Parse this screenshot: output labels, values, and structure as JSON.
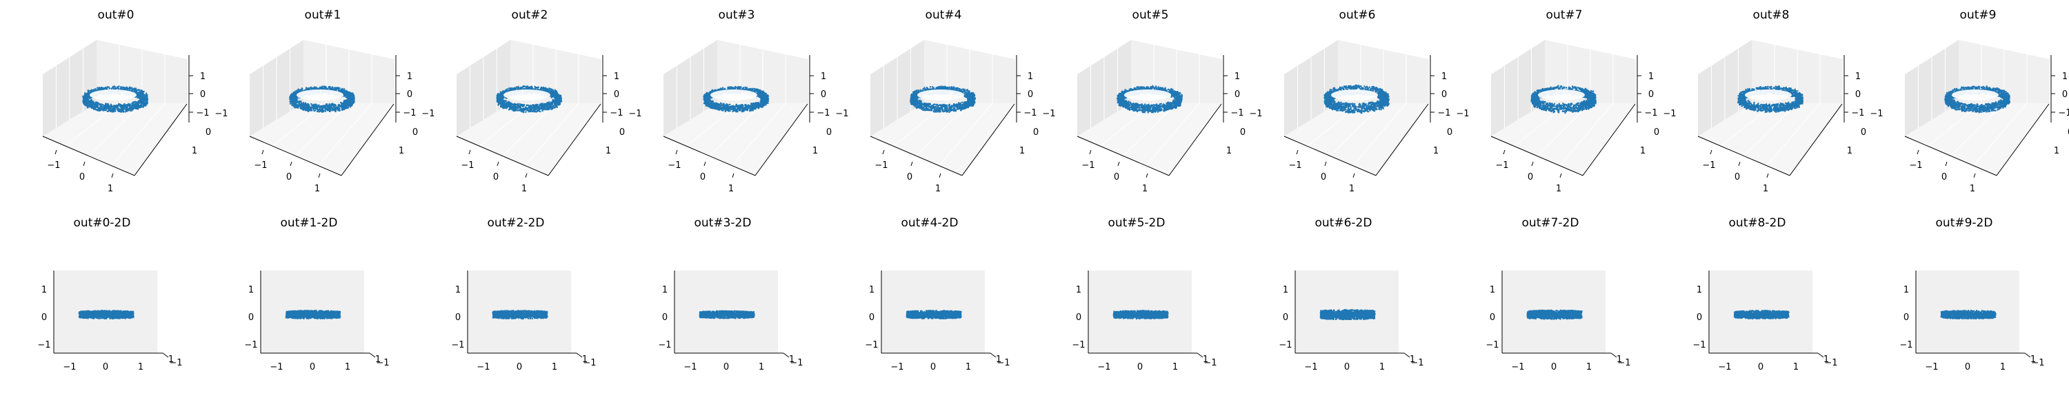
{
  "colors": {
    "points": "#1f77b4",
    "pane_left": "#e7e7e7",
    "pane_back": "#f0f0f0",
    "pane_floor": "#f6f6f6",
    "grid": "#ffffff",
    "axis": "#000000"
  },
  "point_count": 1400,
  "chart_data": [
    {
      "type": "scatter",
      "title": "out#0",
      "view": "3d",
      "xlim": [
        -1.6,
        1.6
      ],
      "ylim": [
        -1.6,
        1.6
      ],
      "zlim": [
        -1.6,
        1.6
      ],
      "x_ticks": [
        "−1",
        "0",
        "1"
      ],
      "y_ticks": [
        "−1",
        "0",
        "1"
      ],
      "z_ticks": [
        "−1",
        "0",
        "1"
      ],
      "ring": {
        "radius": 1.0,
        "height": 0.4
      }
    },
    {
      "type": "scatter",
      "title": "out#1",
      "view": "3d",
      "xlim": [
        -1.6,
        1.6
      ],
      "ylim": [
        -1.6,
        1.6
      ],
      "zlim": [
        -1.6,
        1.6
      ],
      "x_ticks": [
        "−1",
        "0",
        "1"
      ],
      "y_ticks": [
        "−1",
        "0",
        "1"
      ],
      "z_ticks": [
        "−1",
        "0",
        "1"
      ],
      "ring": {
        "radius": 1.0,
        "height": 0.4
      }
    },
    {
      "type": "scatter",
      "title": "out#2",
      "view": "3d",
      "xlim": [
        -1.6,
        1.6
      ],
      "ylim": [
        -1.6,
        1.6
      ],
      "zlim": [
        -1.6,
        1.6
      ],
      "x_ticks": [
        "−1",
        "0",
        "1"
      ],
      "y_ticks": [
        "−1",
        "0",
        "1"
      ],
      "z_ticks": [
        "−1",
        "0",
        "1"
      ],
      "ring": {
        "radius": 1.0,
        "height": 0.4
      }
    },
    {
      "type": "scatter",
      "title": "out#3",
      "view": "3d",
      "xlim": [
        -1.6,
        1.6
      ],
      "ylim": [
        -1.6,
        1.6
      ],
      "zlim": [
        -1.6,
        1.6
      ],
      "x_ticks": [
        "−1",
        "0",
        "1"
      ],
      "y_ticks": [
        "−1",
        "0",
        "1"
      ],
      "z_ticks": [
        "−1",
        "0",
        "1"
      ],
      "ring": {
        "radius": 1.0,
        "height": 0.35
      }
    },
    {
      "type": "scatter",
      "title": "out#4",
      "view": "3d",
      "xlim": [
        -1.6,
        1.6
      ],
      "ylim": [
        -1.6,
        1.6
      ],
      "zlim": [
        -1.6,
        1.6
      ],
      "x_ticks": [
        "−1",
        "0",
        "1"
      ],
      "y_ticks": [
        "−1",
        "0",
        "1"
      ],
      "z_ticks": [
        "−1",
        "0",
        "1"
      ],
      "ring": {
        "radius": 1.0,
        "height": 0.4
      }
    },
    {
      "type": "scatter",
      "title": "out#5",
      "view": "3d",
      "xlim": [
        -1.6,
        1.6
      ],
      "ylim": [
        -1.6,
        1.6
      ],
      "zlim": [
        -1.6,
        1.6
      ],
      "x_ticks": [
        "−1",
        "0",
        "1"
      ],
      "y_ticks": [
        "−1",
        "0",
        "1"
      ],
      "z_ticks": [
        "−1",
        "0",
        "1"
      ],
      "ring": {
        "radius": 1.0,
        "height": 0.4
      }
    },
    {
      "type": "scatter",
      "title": "out#6",
      "view": "3d",
      "xlim": [
        -1.6,
        1.6
      ],
      "ylim": [
        -1.6,
        1.6
      ],
      "zlim": [
        -1.6,
        1.6
      ],
      "x_ticks": [
        "−1",
        "0",
        "1"
      ],
      "y_ticks": [
        "−1",
        "0",
        "1"
      ],
      "z_ticks": [
        "−1",
        "0",
        "1"
      ],
      "ring": {
        "radius": 1.0,
        "height": 0.5
      }
    },
    {
      "type": "scatter",
      "title": "out#7",
      "view": "3d",
      "xlim": [
        -1.6,
        1.6
      ],
      "ylim": [
        -1.6,
        1.6
      ],
      "zlim": [
        -1.6,
        1.6
      ],
      "x_ticks": [
        "−1",
        "0",
        "1"
      ],
      "y_ticks": [
        "−1",
        "0",
        "1"
      ],
      "z_ticks": [
        "−1",
        "0",
        "1"
      ],
      "ring": {
        "radius": 1.0,
        "height": 0.45
      }
    },
    {
      "type": "scatter",
      "title": "out#8",
      "view": "3d",
      "xlim": [
        -1.6,
        1.6
      ],
      "ylim": [
        -1.6,
        1.6
      ],
      "zlim": [
        -1.6,
        1.6
      ],
      "x_ticks": [
        "−1",
        "0",
        "1"
      ],
      "y_ticks": [
        "−1",
        "0",
        "1"
      ],
      "z_ticks": [
        "−1",
        "0",
        "1"
      ],
      "ring": {
        "radius": 1.0,
        "height": 0.4
      }
    },
    {
      "type": "scatter",
      "title": "out#9",
      "view": "3d",
      "xlim": [
        -1.6,
        1.6
      ],
      "ylim": [
        -1.6,
        1.6
      ],
      "zlim": [
        -1.6,
        1.6
      ],
      "x_ticks": [
        "−1",
        "0",
        "1"
      ],
      "y_ticks": [
        "−1",
        "0",
        "1"
      ],
      "z_ticks": [
        "−1",
        "0",
        "1"
      ],
      "ring": {
        "radius": 1.0,
        "height": 0.4
      }
    },
    {
      "type": "scatter",
      "title": "out#0-2D",
      "view": "side",
      "xlim": [
        -1.6,
        1.6
      ],
      "zlim": [
        -1.6,
        1.6
      ],
      "x_ticks": [
        "−1",
        "0",
        "1"
      ],
      "z_ticks": [
        "−1",
        "0",
        "1"
      ],
      "y_ticks": [
        "1",
        "−1"
      ],
      "ring": {
        "radius": 1.0,
        "height": 0.4
      }
    },
    {
      "type": "scatter",
      "title": "out#1-2D",
      "view": "side",
      "xlim": [
        -1.6,
        1.6
      ],
      "zlim": [
        -1.6,
        1.6
      ],
      "x_ticks": [
        "−1",
        "0",
        "1"
      ],
      "z_ticks": [
        "−1",
        "0",
        "1"
      ],
      "y_ticks": [
        "1",
        "−1"
      ],
      "ring": {
        "radius": 1.0,
        "height": 0.4
      }
    },
    {
      "type": "scatter",
      "title": "out#2-2D",
      "view": "side",
      "xlim": [
        -1.6,
        1.6
      ],
      "zlim": [
        -1.6,
        1.6
      ],
      "x_ticks": [
        "−1",
        "0",
        "1"
      ],
      "z_ticks": [
        "−1",
        "0",
        "1"
      ],
      "y_ticks": [
        "1",
        "−1"
      ],
      "ring": {
        "radius": 1.0,
        "height": 0.4
      }
    },
    {
      "type": "scatter",
      "title": "out#3-2D",
      "view": "side",
      "xlim": [
        -1.6,
        1.6
      ],
      "zlim": [
        -1.6,
        1.6
      ],
      "x_ticks": [
        "−1",
        "0",
        "1"
      ],
      "z_ticks": [
        "−1",
        "0",
        "1"
      ],
      "y_ticks": [
        "1",
        "−1"
      ],
      "ring": {
        "radius": 1.0,
        "height": 0.35
      }
    },
    {
      "type": "scatter",
      "title": "out#4-2D",
      "view": "side",
      "xlim": [
        -1.6,
        1.6
      ],
      "zlim": [
        -1.6,
        1.6
      ],
      "x_ticks": [
        "−1",
        "0",
        "1"
      ],
      "z_ticks": [
        "−1",
        "0",
        "1"
      ],
      "y_ticks": [
        "1",
        "−1"
      ],
      "ring": {
        "radius": 1.0,
        "height": 0.4
      }
    },
    {
      "type": "scatter",
      "title": "out#5-2D",
      "view": "side",
      "xlim": [
        -1.6,
        1.6
      ],
      "zlim": [
        -1.6,
        1.6
      ],
      "x_ticks": [
        "−1",
        "0",
        "1"
      ],
      "z_ticks": [
        "−1",
        "0",
        "1"
      ],
      "y_ticks": [
        "1",
        "−1"
      ],
      "ring": {
        "radius": 1.0,
        "height": 0.4
      }
    },
    {
      "type": "scatter",
      "title": "out#6-2D",
      "view": "side",
      "xlim": [
        -1.6,
        1.6
      ],
      "zlim": [
        -1.6,
        1.6
      ],
      "x_ticks": [
        "−1",
        "0",
        "1"
      ],
      "z_ticks": [
        "−1",
        "0",
        "1"
      ],
      "y_ticks": [
        "1",
        "−1"
      ],
      "ring": {
        "radius": 1.0,
        "height": 0.5
      }
    },
    {
      "type": "scatter",
      "title": "out#7-2D",
      "view": "side",
      "xlim": [
        -1.6,
        1.6
      ],
      "zlim": [
        -1.6,
        1.6
      ],
      "x_ticks": [
        "−1",
        "0",
        "1"
      ],
      "z_ticks": [
        "−1",
        "0",
        "1"
      ],
      "y_ticks": [
        "1",
        "−1"
      ],
      "ring": {
        "radius": 1.0,
        "height": 0.45
      }
    },
    {
      "type": "scatter",
      "title": "out#8-2D",
      "view": "side",
      "xlim": [
        -1.6,
        1.6
      ],
      "zlim": [
        -1.6,
        1.6
      ],
      "x_ticks": [
        "−1",
        "0",
        "1"
      ],
      "z_ticks": [
        "−1",
        "0",
        "1"
      ],
      "y_ticks": [
        "1",
        "−1"
      ],
      "ring": {
        "radius": 1.0,
        "height": 0.4
      }
    },
    {
      "type": "scatter",
      "title": "out#9-2D",
      "view": "side",
      "xlim": [
        -1.6,
        1.6
      ],
      "zlim": [
        -1.6,
        1.6
      ],
      "x_ticks": [
        "−1",
        "0",
        "1"
      ],
      "z_ticks": [
        "−1",
        "0",
        "1"
      ],
      "y_ticks": [
        "1",
        "−1"
      ],
      "ring": {
        "radius": 1.0,
        "height": 0.4
      }
    }
  ]
}
